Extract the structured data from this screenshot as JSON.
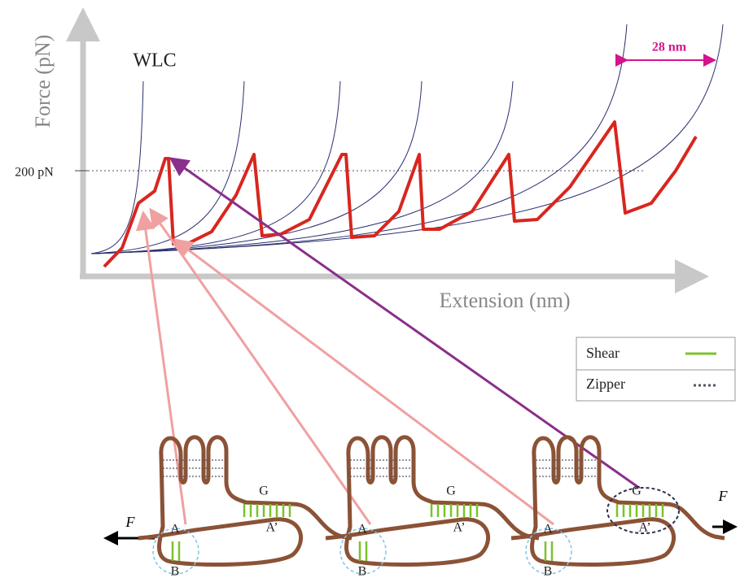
{
  "plot": {
    "y_axis_label": "Force (pN)",
    "x_axis_label": "Extension (nm)",
    "model_label": "WLC",
    "force_marker": "200 pN",
    "spacing_label": "28 nm"
  },
  "legend": {
    "items": [
      {
        "label": "Shear"
      },
      {
        "label": "Zipper"
      }
    ]
  },
  "force_labels": [
    "F",
    "F"
  ],
  "units": [
    {
      "a": "A",
      "b": "B",
      "g": "G",
      "a_prime": "A’"
    },
    {
      "a": "A",
      "b": "B",
      "g": "G",
      "a_prime": "A’"
    },
    {
      "a": "A",
      "b": "B",
      "g": "G",
      "a_prime": "A’"
    }
  ]
}
